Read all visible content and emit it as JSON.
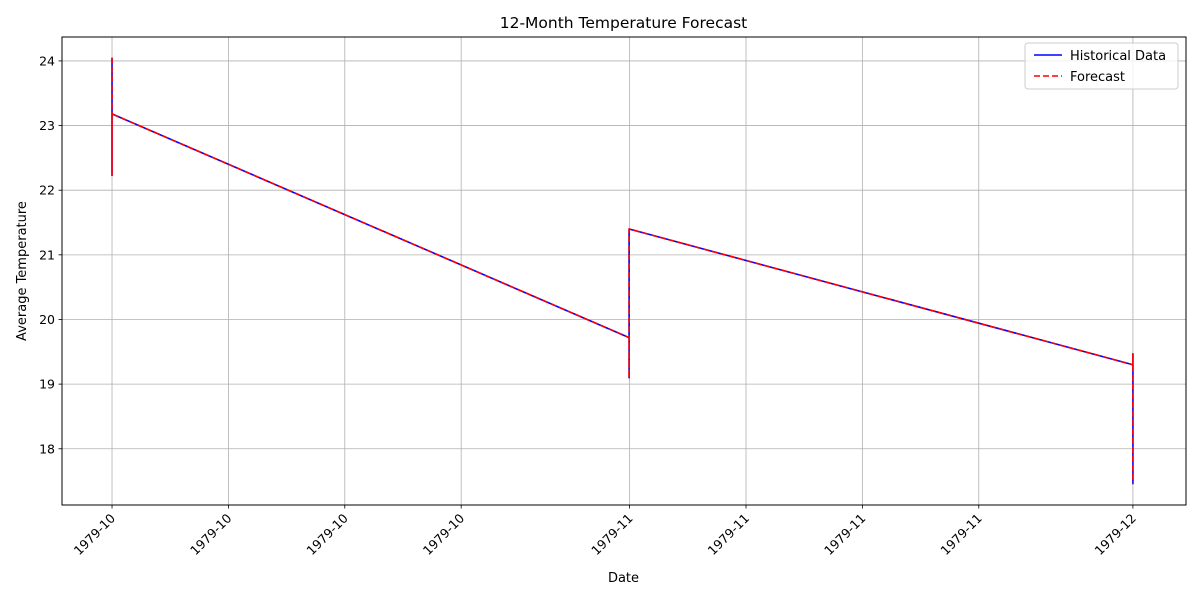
{
  "chart_data": {
    "type": "line",
    "title": "12-Month Temperature Forecast",
    "xlabel": "Date",
    "ylabel": "Average Temperature",
    "x_tick_labels": [
      "1979-10",
      "1979-10",
      "1979-10",
      "1979-10",
      "1979-11",
      "1979-11",
      "1979-11",
      "1979-11",
      "1979-12"
    ],
    "x_tick_positions": [
      0.0,
      0.114,
      0.228,
      0.342,
      0.507,
      0.621,
      0.735,
      0.849,
      1.0
    ],
    "y_ticks": [
      18,
      19,
      20,
      21,
      22,
      23,
      24
    ],
    "xlim": [
      -0.049,
      1.052
    ],
    "ylim": [
      17.13,
      24.37
    ],
    "grid": true,
    "legend_position": "top-right",
    "series": [
      {
        "name": "Historical Data",
        "color": "#0000ff",
        "style": "solid",
        "points": [
          [
            0.0,
            24.05
          ],
          [
            0.0,
            22.23
          ],
          [
            0.0,
            23.18
          ],
          [
            0.5065,
            19.72
          ],
          [
            0.5065,
            19.1
          ],
          [
            0.5065,
            20.5
          ],
          [
            0.5065,
            21.4
          ],
          [
            1.0,
            19.3
          ],
          [
            1.0,
            19.47
          ],
          [
            1.0,
            17.45
          ]
        ]
      },
      {
        "name": "Forecast",
        "color": "#ff0000",
        "style": "dashed",
        "points": [
          [
            0.0,
            24.05
          ],
          [
            0.0,
            22.23
          ],
          [
            0.0,
            23.18
          ],
          [
            0.5065,
            19.72
          ],
          [
            0.5065,
            19.1
          ],
          [
            0.5065,
            20.5
          ],
          [
            0.5065,
            21.4
          ],
          [
            1.0,
            19.3
          ],
          [
            1.0,
            19.47
          ],
          [
            1.0,
            17.45
          ]
        ]
      }
    ]
  }
}
